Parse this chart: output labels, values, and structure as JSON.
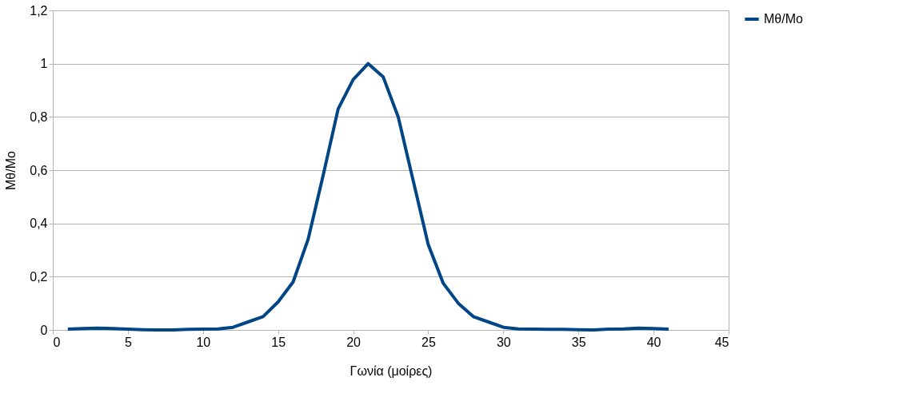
{
  "chart_data": {
    "type": "line",
    "xlabel": "Γωνία (μοίρες)",
    "ylabel": "Mθ/Mo",
    "x": [
      1,
      2,
      3,
      4,
      5,
      6,
      7,
      8,
      9,
      10,
      11,
      12,
      13,
      14,
      15,
      16,
      17,
      18,
      19,
      20,
      21,
      22,
      23,
      24,
      25,
      26,
      27,
      28,
      29,
      30,
      31,
      32,
      33,
      34,
      35,
      36,
      37,
      38,
      39,
      40,
      41
    ],
    "series": [
      {
        "name": "Mθ/Mo",
        "color": "#004586",
        "values": [
          0.003,
          0.005,
          0.007,
          0.005,
          0.003,
          0.001,
          0,
          0,
          0.002,
          0.003,
          0.004,
          0.01,
          0.03,
          0.05,
          0.105,
          0.18,
          0.34,
          0.58,
          0.83,
          0.94,
          1.0,
          0.95,
          0.8,
          0.56,
          0.32,
          0.175,
          0.1,
          0.05,
          0.03,
          0.01,
          0.004,
          0.003,
          0.002,
          0.002,
          0.001,
          0,
          0.003,
          0.004,
          0.007,
          0.005,
          0.003
        ]
      }
    ],
    "xlim": [
      0,
      45
    ],
    "xticks": [
      0,
      5,
      10,
      15,
      20,
      25,
      30,
      35,
      40,
      45
    ],
    "ylim": [
      0,
      1.2
    ],
    "yticks": [
      0,
      {
        "value": 0.2,
        "label": "0,2"
      },
      {
        "value": 0.4,
        "label": "0,4"
      },
      {
        "value": 0.6,
        "label": "0,6"
      },
      {
        "value": 0.8,
        "label": "0,8"
      },
      1,
      {
        "value": 1.2,
        "label": "1,2"
      }
    ],
    "grid": "y",
    "legend": "right",
    "marker": "none",
    "line_style": "solid"
  }
}
